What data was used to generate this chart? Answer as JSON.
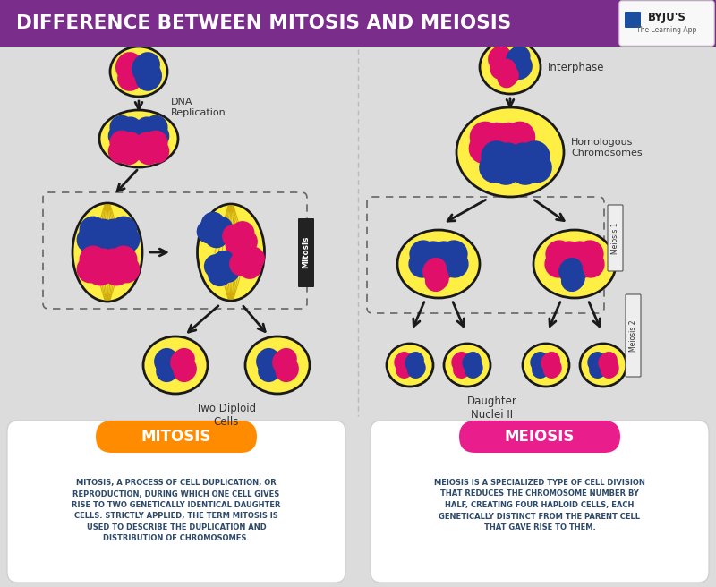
{
  "title": "DIFFERENCE BETWEEN MITOSIS AND MEIOSIS",
  "title_bg_color": "#7B2D8B",
  "title_text_color": "#FFFFFF",
  "bg_color": "#DCDCDC",
  "mitosis_label": "MITOSIS",
  "mitosis_label_color_left": "#FF8C00",
  "mitosis_label_color_right": "#FFB347",
  "meiosis_label": "MEIOSIS",
  "meiosis_label_color_left": "#E91E8C",
  "meiosis_label_color_right": "#FF69B4",
  "mitosis_desc": "MITOSIS, A PROCESS OF CELL DUPLICATION, OR\nREPRODUCTION, DURING WHICH ONE CELL GIVES\nRISE TO TWO GENETICALLY IDENTICAL DAUGHTER\nCELLS. STRICTLY APPLIED, THE TERM MITOSIS IS\nUSED TO DESCRIBE THE DUPLICATION AND\nDISTRIBUTION OF CHROMOSOMES.",
  "meiosis_desc": "MEIOSIS IS A SPECIALIZED TYPE OF CELL DIVISION\nTHAT REDUCES THE CHROMOSOME NUMBER BY\nHALF, CREATING FOUR HAPLOID CELLS, EACH\nGENETICALLY DISTINCT FROM THE PARENT CELL\nTHAT GAVE RISE TO THEM.",
  "desc_text_color": "#2E4A6B",
  "desc_box_color": "#FFFFFF",
  "dna_replication_text": "DNA\nReplication",
  "interphase_text": "Interphase",
  "homologous_text": "Homologous\nChromosomes",
  "two_diploid_text": "Two Diploid\nCells",
  "daughter_nuclei_text": "Daughter\nNuclei II",
  "mitosis_rotated_text": "Mitosis",
  "meiosis1_rotated_text": "Meiosis 1",
  "meiosis2_rotated_text": "Meiosis 2",
  "cell_fill": "#FFEE44",
  "cell_fill_light": "#FFF176",
  "cell_edge": "#1A1A1A",
  "chr_blue": "#1E3FA0",
  "chr_pink": "#E0106A",
  "spindle_line_color": "#C8A000",
  "dashed_box_color": "#555555",
  "arrow_color": "#1A1A1A"
}
